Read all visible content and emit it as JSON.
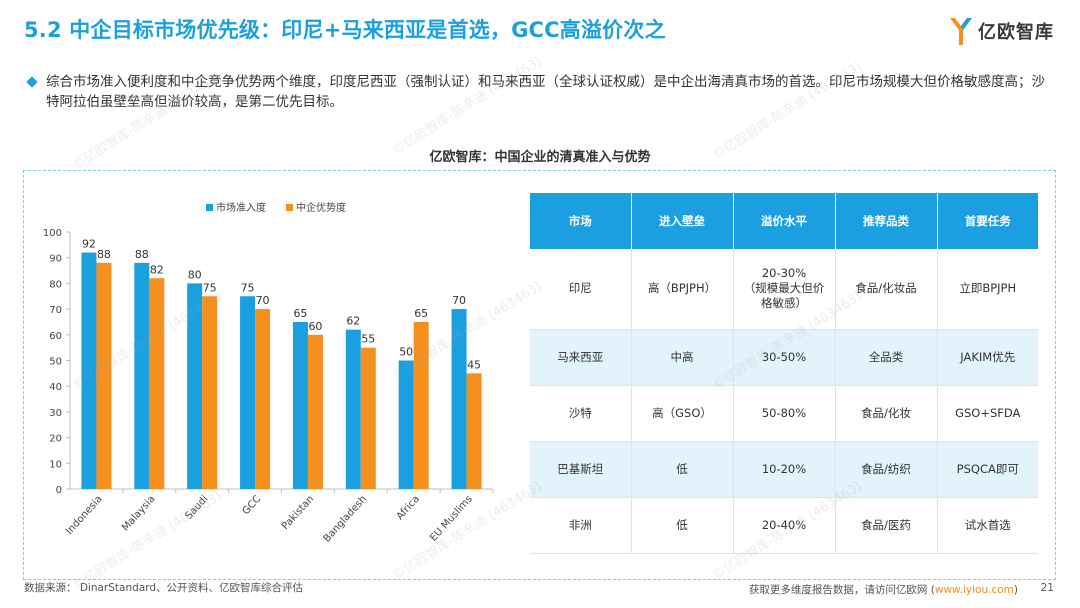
{
  "header": {
    "title": "5.2 中企目标市场优先级：印尼+马来西亚是首选，GCC高溢价次之",
    "logo_text": "亿欧智库"
  },
  "summary": "综合市场准入便利度和中企竞争优势两个维度，印度尼西亚（强制认证）和马来西亚（全球认证权威）是中企出海清真市场的首选。印尼市场规模大但价格敏感度高；沙特阿拉伯虽壁垒高但溢价较高，是第二优先目标。",
  "section_title": "亿欧智库：中国企业的清真准入与优势",
  "chart_data": {
    "type": "bar",
    "categories": [
      "Indonesia",
      "Malaysia",
      "Saudi",
      "GCC",
      "Pakistan",
      "Bangladesh",
      "Africa",
      "EU Muslims"
    ],
    "series": [
      {
        "name": "市场准入度",
        "values": [
          92,
          88,
          80,
          75,
          65,
          62,
          50,
          70
        ],
        "color": "#1a9fe0"
      },
      {
        "name": "中企优势度",
        "values": [
          88,
          82,
          75,
          70,
          60,
          55,
          65,
          45
        ],
        "color": "#f5901e"
      }
    ],
    "ylim": [
      0,
      100
    ],
    "yticks": [
      0,
      10,
      20,
      30,
      40,
      50,
      60,
      70,
      80,
      90,
      100
    ],
    "legend_position": "top",
    "grid": false
  },
  "table": {
    "headers": [
      "市场",
      "进入壁垒",
      "溢价水平",
      "推荐品类",
      "首要任务"
    ],
    "rows": [
      [
        "印尼",
        "高（BPJPH）",
        "20-30%\n（规模最大但价格敏感）",
        "食品/化妆品",
        "立即BPJPH"
      ],
      [
        "马来西亚",
        "中高",
        "30-50%",
        "全品类",
        "JAKIM优先"
      ],
      [
        "沙特",
        "高（GSO）",
        "50-80%",
        "食品/化妆",
        "GSO+SFDA"
      ],
      [
        "巴基斯坦",
        "低",
        "10-20%",
        "食品/纺织",
        "PSQCA即可"
      ],
      [
        "非洲",
        "低",
        "20-40%",
        "食品/医药",
        "试水首选"
      ]
    ]
  },
  "footer": {
    "source": "数据来源： DinarStandard、公开资料、亿欧智库综合评估",
    "more_prefix": "获取更多维度报告数据，请访问亿欧网 (",
    "more_link": "www.iyiou.com",
    "more_suffix": ")",
    "page": "21"
  },
  "watermark": "©亿欧智库-陈辛迪 (463463)"
}
